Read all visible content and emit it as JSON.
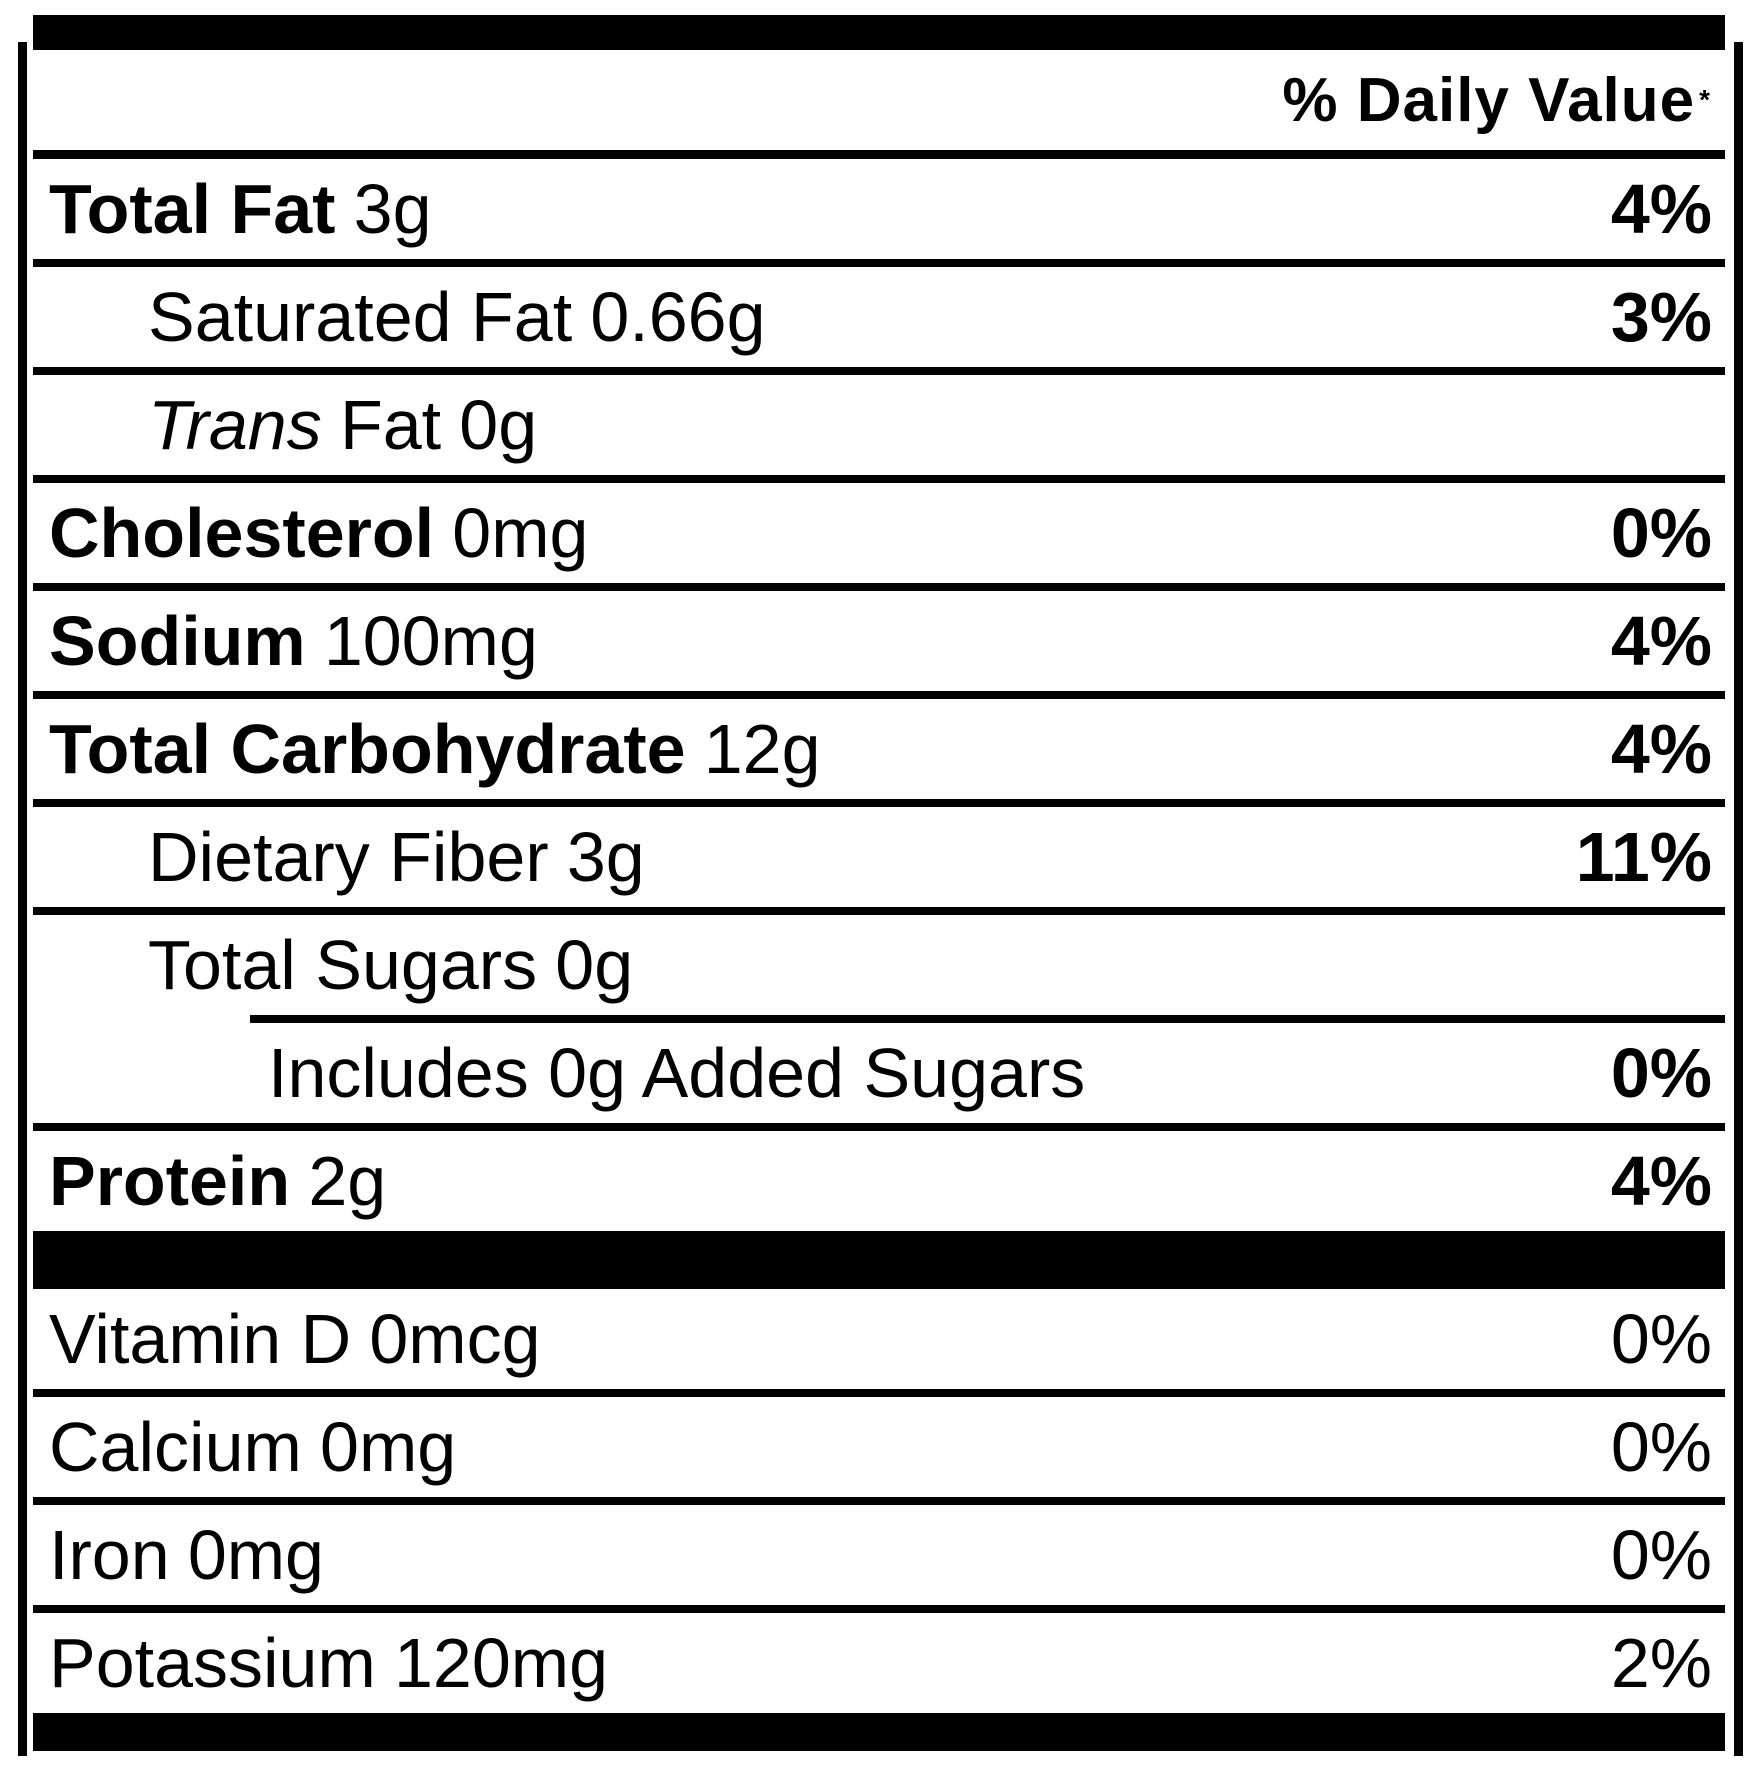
{
  "header": {
    "daily_value_label": "% Daily Value",
    "footnote_symbol": "*"
  },
  "nutrients": [
    {
      "prefix_italic": "",
      "name": "Total Fat",
      "amount": "3g",
      "daily_value": "4%"
    },
    {
      "prefix_italic": "",
      "name": "Saturated Fat",
      "amount": "0.66g",
      "daily_value": "3%"
    },
    {
      "prefix_italic": "Trans",
      "name": "Fat",
      "amount": "0g",
      "daily_value": ""
    },
    {
      "prefix_italic": "",
      "name": "Cholesterol",
      "amount": "0mg",
      "daily_value": "0%"
    },
    {
      "prefix_italic": "",
      "name": "Sodium",
      "amount": "100mg",
      "daily_value": "4%"
    },
    {
      "prefix_italic": "",
      "name": "Total Carbohydrate",
      "amount": "12g",
      "daily_value": "4%"
    },
    {
      "prefix_italic": "",
      "name": "Dietary Fiber",
      "amount": "3g",
      "daily_value": "11%"
    },
    {
      "prefix_italic": "",
      "name": "Total Sugars",
      "amount": "0g",
      "daily_value": ""
    },
    {
      "prefix_italic": "",
      "name": "Includes 0g Added Sugars",
      "amount": "",
      "daily_value": "0%"
    },
    {
      "prefix_italic": "",
      "name": "Protein",
      "amount": "2g",
      "daily_value": "4%"
    },
    {
      "prefix_italic": "",
      "name": "Vitamin D",
      "amount": "0mcg",
      "daily_value": "0%"
    },
    {
      "prefix_italic": "",
      "name": "Calcium",
      "amount": "0mg",
      "daily_value": "0%"
    },
    {
      "prefix_italic": "",
      "name": "Iron",
      "amount": "0mg",
      "daily_value": "0%"
    },
    {
      "prefix_italic": "",
      "name": "Potassium",
      "amount": "120mg",
      "daily_value": "2%"
    }
  ],
  "colors": {
    "text": "#000000",
    "background": "#ffffff",
    "rule": "#000000"
  }
}
